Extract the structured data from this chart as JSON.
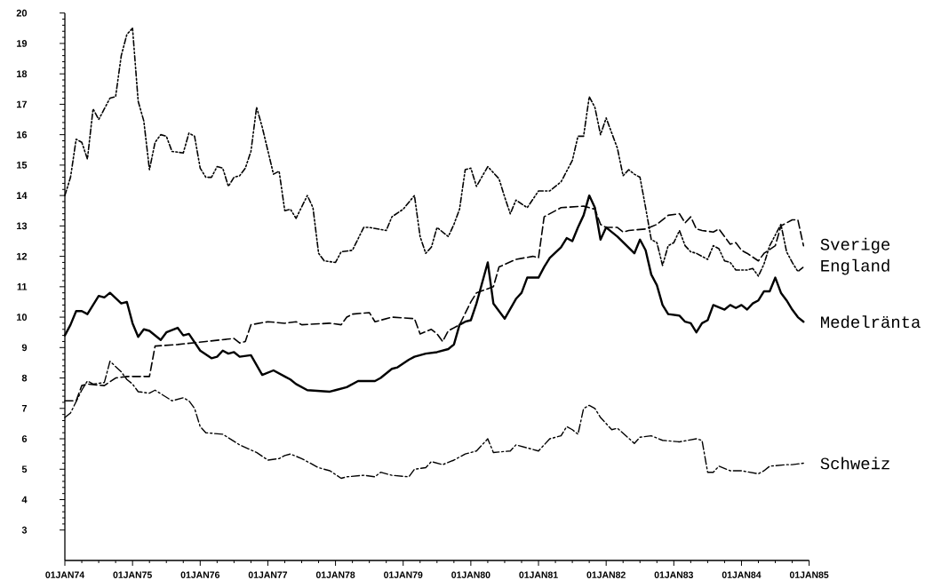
{
  "chart_data": {
    "type": "line",
    "xlim": [
      "1974-01-01",
      "1985-01-01"
    ],
    "ylim": [
      2,
      20
    ],
    "xticks": [
      {
        "value": "1974-01-01",
        "label": "01JAN74"
      },
      {
        "value": "1975-01-01",
        "label": "01JAN75"
      },
      {
        "value": "1976-01-01",
        "label": "01JAN76"
      },
      {
        "value": "1977-01-01",
        "label": "01JAN77"
      },
      {
        "value": "1978-01-01",
        "label": "01JAN78"
      },
      {
        "value": "1979-01-01",
        "label": "01JAN79"
      },
      {
        "value": "1980-01-01",
        "label": "01JAN80"
      },
      {
        "value": "1981-01-01",
        "label": "01JAN81"
      },
      {
        "value": "1982-01-01",
        "label": "01JAN82"
      },
      {
        "value": "1983-01-01",
        "label": "01JAN83"
      },
      {
        "value": "1984-01-01",
        "label": "01JAN84"
      },
      {
        "value": "1985-01-01",
        "label": "01JAN85"
      }
    ],
    "yticks": [
      3,
      4,
      5,
      6,
      7,
      8,
      9,
      10,
      11,
      12,
      13,
      14,
      15,
      16,
      17,
      18,
      19,
      20
    ],
    "series": [
      {
        "name": "Sverige",
        "color": "#000000",
        "line_style": "dashed",
        "x": [
          "1974-01",
          "1974-03",
          "1974-04",
          "1974-05",
          "1974-08",
          "1974-10",
          "1974-12",
          "1975-04",
          "1975-05",
          "1975-09",
          "1976-02",
          "1976-07",
          "1976-08",
          "1976-09",
          "1976-10",
          "1977-01",
          "1977-04",
          "1977-06",
          "1977-07",
          "1977-12",
          "1978-02",
          "1978-03",
          "1978-04",
          "1978-07",
          "1978-08",
          "1978-11",
          "1979-03",
          "1979-04",
          "1979-06",
          "1979-07",
          "1979-08",
          "1979-09",
          "1979-11",
          "1980-01",
          "1980-02",
          "1980-05",
          "1980-06",
          "1980-09",
          "1980-12",
          "1981-01",
          "1981-02",
          "1981-05",
          "1981-09",
          "1981-11",
          "1981-12",
          "1982-01",
          "1982-03",
          "1982-04",
          "1982-05",
          "1982-08",
          "1982-10",
          "1982-12",
          "1983-02",
          "1983-03",
          "1983-04",
          "1983-05",
          "1983-06",
          "1983-08",
          "1983-09",
          "1983-11",
          "1983-12",
          "1984-01",
          "1984-02",
          "1984-04",
          "1984-05",
          "1984-07",
          "1984-08",
          "1984-10",
          "1984-11",
          "1984-12"
        ],
        "values": [
          7.25,
          7.25,
          7.75,
          7.8,
          7.75,
          8.0,
          8.05,
          8.05,
          9.05,
          9.1,
          9.2,
          9.3,
          9.15,
          9.2,
          9.75,
          9.85,
          9.8,
          9.85,
          9.75,
          9.8,
          9.75,
          10.0,
          10.1,
          10.15,
          9.85,
          10.0,
          9.95,
          9.45,
          9.6,
          9.45,
          9.2,
          9.55,
          9.75,
          10.5,
          10.8,
          11.0,
          11.65,
          11.9,
          12.0,
          11.95,
          13.3,
          13.6,
          13.65,
          13.55,
          13.05,
          12.95,
          12.95,
          12.8,
          12.85,
          12.9,
          13.05,
          13.35,
          13.4,
          13.1,
          13.3,
          12.9,
          12.85,
          12.8,
          12.9,
          12.4,
          12.45,
          12.2,
          12.1,
          11.85,
          12.1,
          12.35,
          13.0,
          13.2,
          13.2,
          12.35
        ]
      },
      {
        "name": "England",
        "color": "#000000",
        "line_style": "dashdotdot",
        "x": [
          "1974-01",
          "1974-02",
          "1974-03",
          "1974-04",
          "1974-05",
          "1974-06",
          "1974-07",
          "1974-09",
          "1974-10",
          "1974-11",
          "1974-12",
          "1975-01",
          "1975-02",
          "1975-03",
          "1975-04",
          "1975-05",
          "1975-06",
          "1975-07",
          "1975-08",
          "1975-10",
          "1975-11",
          "1975-12",
          "1976-01",
          "1976-02",
          "1976-03",
          "1976-04",
          "1976-05",
          "1976-06",
          "1976-07",
          "1976-08",
          "1976-09",
          "1976-10",
          "1976-11",
          "1976-12",
          "1977-02",
          "1977-03",
          "1977-04",
          "1977-05",
          "1977-06",
          "1977-08",
          "1977-09",
          "1977-10",
          "1977-11",
          "1978-01",
          "1978-02",
          "1978-04",
          "1978-06",
          "1978-07",
          "1978-10",
          "1978-11",
          "1979-01",
          "1979-03",
          "1979-04",
          "1979-05",
          "1979-06",
          "1979-07",
          "1979-09",
          "1979-10",
          "1979-11",
          "1979-12",
          "1980-01",
          "1980-02",
          "1980-04",
          "1980-06",
          "1980-07",
          "1980-08",
          "1980-09",
          "1980-11",
          "1981-01",
          "1981-03",
          "1981-05",
          "1981-07",
          "1981-08",
          "1981-09",
          "1981-10",
          "1981-11",
          "1981-12",
          "1982-01",
          "1982-03",
          "1982-04",
          "1982-05",
          "1982-06",
          "1982-07",
          "1982-08",
          "1982-09",
          "1982-10",
          "1982-11",
          "1982-12",
          "1983-01",
          "1983-02",
          "1983-03",
          "1983-04",
          "1983-05",
          "1983-07",
          "1983-08",
          "1983-09",
          "1983-10",
          "1983-11",
          "1983-12",
          "1984-02",
          "1984-03",
          "1984-04",
          "1984-05",
          "1984-06",
          "1984-07",
          "1984-08",
          "1984-09",
          "1984-10",
          "1984-11",
          "1984-12"
        ],
        "values": [
          14.0,
          14.6,
          15.85,
          15.75,
          15.2,
          16.85,
          16.5,
          17.2,
          17.25,
          18.6,
          19.3,
          19.5,
          17.1,
          16.45,
          14.85,
          15.75,
          16.0,
          15.95,
          15.45,
          15.4,
          16.05,
          15.95,
          14.9,
          14.6,
          14.6,
          14.95,
          14.9,
          14.3,
          14.6,
          14.65,
          14.9,
          15.45,
          16.9,
          16.25,
          14.7,
          14.8,
          13.5,
          13.55,
          13.25,
          14.0,
          13.6,
          12.1,
          11.85,
          11.8,
          12.15,
          12.2,
          12.95,
          12.95,
          12.85,
          13.3,
          13.55,
          14.0,
          12.65,
          12.1,
          12.3,
          12.95,
          12.65,
          13.05,
          13.55,
          14.85,
          14.9,
          14.3,
          14.95,
          14.55,
          13.95,
          13.4,
          13.85,
          13.6,
          14.15,
          14.15,
          14.45,
          15.15,
          15.95,
          15.95,
          17.25,
          16.9,
          16.0,
          16.55,
          15.55,
          14.65,
          14.85,
          14.7,
          14.6,
          13.6,
          12.55,
          12.45,
          11.7,
          12.35,
          12.45,
          12.85,
          12.35,
          12.15,
          12.1,
          11.9,
          12.35,
          12.25,
          11.85,
          11.8,
          11.55,
          11.55,
          11.6,
          11.35,
          11.75,
          12.35,
          12.7,
          13.05,
          12.15,
          11.8,
          11.5,
          11.65
        ]
      },
      {
        "name": "Medelränta",
        "color": "#000000",
        "line_style": "solid",
        "x": [
          "1974-01",
          "1974-02",
          "1974-03",
          "1974-04",
          "1974-05",
          "1974-07",
          "1974-08",
          "1974-09",
          "1974-11",
          "1974-12",
          "1975-01",
          "1975-02",
          "1975-03",
          "1975-04",
          "1975-06",
          "1975-07",
          "1975-09",
          "1975-10",
          "1975-11",
          "1976-01",
          "1976-03",
          "1976-04",
          "1976-05",
          "1976-06",
          "1976-07",
          "1976-08",
          "1976-10",
          "1976-12",
          "1977-02",
          "1977-04",
          "1977-05",
          "1977-06",
          "1977-08",
          "1977-12",
          "1978-01",
          "1978-03",
          "1978-05",
          "1978-08",
          "1978-09",
          "1978-11",
          "1978-12",
          "1979-02",
          "1979-03",
          "1979-05",
          "1979-07",
          "1979-09",
          "1979-10",
          "1979-11",
          "1979-12",
          "1980-01",
          "1980-02",
          "1980-04",
          "1980-05",
          "1980-07",
          "1980-09",
          "1980-10",
          "1980-11",
          "1981-01",
          "1981-02",
          "1981-03",
          "1981-05",
          "1981-06",
          "1981-07",
          "1981-08",
          "1981-09",
          "1981-10",
          "1981-11",
          "1981-12",
          "1982-01",
          "1982-03",
          "1982-06",
          "1982-07",
          "1982-08",
          "1982-09",
          "1982-10",
          "1982-11",
          "1982-12",
          "1983-02",
          "1983-03",
          "1983-04",
          "1983-05",
          "1983-06",
          "1983-07",
          "1983-08",
          "1983-10",
          "1983-11",
          "1983-12",
          "1984-01",
          "1984-02",
          "1984-03",
          "1984-04",
          "1984-05",
          "1984-06",
          "1984-07",
          "1984-08",
          "1984-09",
          "1984-10",
          "1984-11",
          "1984-12"
        ],
        "values": [
          9.4,
          9.75,
          10.2,
          10.2,
          10.1,
          10.7,
          10.65,
          10.8,
          10.45,
          10.5,
          9.8,
          9.35,
          9.6,
          9.55,
          9.25,
          9.5,
          9.65,
          9.4,
          9.45,
          8.9,
          8.65,
          8.7,
          8.9,
          8.8,
          8.85,
          8.7,
          8.75,
          8.1,
          8.25,
          8.05,
          7.95,
          7.8,
          7.6,
          7.55,
          7.6,
          7.7,
          7.9,
          7.9,
          8.0,
          8.3,
          8.35,
          8.6,
          8.7,
          8.8,
          8.85,
          8.95,
          9.1,
          9.75,
          9.85,
          9.9,
          10.45,
          11.8,
          10.45,
          9.95,
          10.6,
          10.8,
          11.3,
          11.3,
          11.65,
          11.95,
          12.3,
          12.6,
          12.5,
          12.95,
          13.35,
          14.0,
          13.6,
          12.55,
          12.95,
          12.65,
          12.1,
          12.55,
          12.2,
          11.4,
          11.05,
          10.4,
          10.1,
          10.05,
          9.85,
          9.8,
          9.5,
          9.8,
          9.9,
          10.4,
          10.25,
          10.4,
          10.3,
          10.4,
          10.25,
          10.45,
          10.55,
          10.85,
          10.85,
          11.3,
          10.8,
          10.55,
          10.25,
          10.0,
          9.85
        ]
      },
      {
        "name": "Schweiz",
        "color": "#000000",
        "line_style": "dashdot",
        "x": [
          "1974-01",
          "1974-02",
          "1974-04",
          "1974-05",
          "1974-06",
          "1974-08",
          "1974-09",
          "1974-11",
          "1974-12",
          "1975-01",
          "1975-02",
          "1975-04",
          "1975-05",
          "1975-08",
          "1975-10",
          "1975-11",
          "1975-12",
          "1976-01",
          "1976-02",
          "1976-05",
          "1976-08",
          "1976-11",
          "1977-01",
          "1977-03",
          "1977-04",
          "1977-05",
          "1977-07",
          "1977-10",
          "1977-12",
          "1978-02",
          "1978-03",
          "1978-06",
          "1978-08",
          "1978-09",
          "1978-11",
          "1979-02",
          "1979-03",
          "1979-05",
          "1979-06",
          "1979-08",
          "1979-10",
          "1979-12",
          "1980-02",
          "1980-04",
          "1980-05",
          "1980-08",
          "1980-09",
          "1980-11",
          "1981-01",
          "1981-03",
          "1981-05",
          "1981-06",
          "1981-07",
          "1981-08",
          "1981-09",
          "1981-10",
          "1981-11",
          "1981-12",
          "1982-02",
          "1982-03",
          "1982-06",
          "1982-07",
          "1982-09",
          "1982-11",
          "1983-02",
          "1983-05",
          "1983-06",
          "1983-07",
          "1983-08",
          "1983-09",
          "1983-11",
          "1984-01",
          "1984-04",
          "1984-05",
          "1984-06",
          "1984-09",
          "1984-10",
          "1984-12"
        ],
        "values": [
          6.7,
          6.85,
          7.6,
          7.9,
          7.8,
          7.85,
          8.55,
          8.2,
          7.95,
          7.8,
          7.55,
          7.5,
          7.6,
          7.25,
          7.35,
          7.25,
          7.0,
          6.4,
          6.2,
          6.15,
          5.8,
          5.55,
          5.3,
          5.35,
          5.45,
          5.5,
          5.35,
          5.05,
          4.95,
          4.7,
          4.75,
          4.8,
          4.75,
          4.9,
          4.8,
          4.75,
          5.0,
          5.05,
          5.25,
          5.15,
          5.3,
          5.5,
          5.6,
          6.0,
          5.55,
          5.6,
          5.8,
          5.7,
          5.6,
          6.0,
          6.1,
          6.4,
          6.3,
          6.15,
          7.0,
          7.1,
          7.0,
          6.7,
          6.3,
          6.35,
          5.85,
          6.05,
          6.1,
          5.95,
          5.9,
          6.0,
          5.95,
          4.9,
          4.9,
          5.1,
          4.95,
          4.95,
          4.85,
          4.95,
          5.1,
          5.15,
          5.15,
          5.2
        ]
      }
    ]
  }
}
